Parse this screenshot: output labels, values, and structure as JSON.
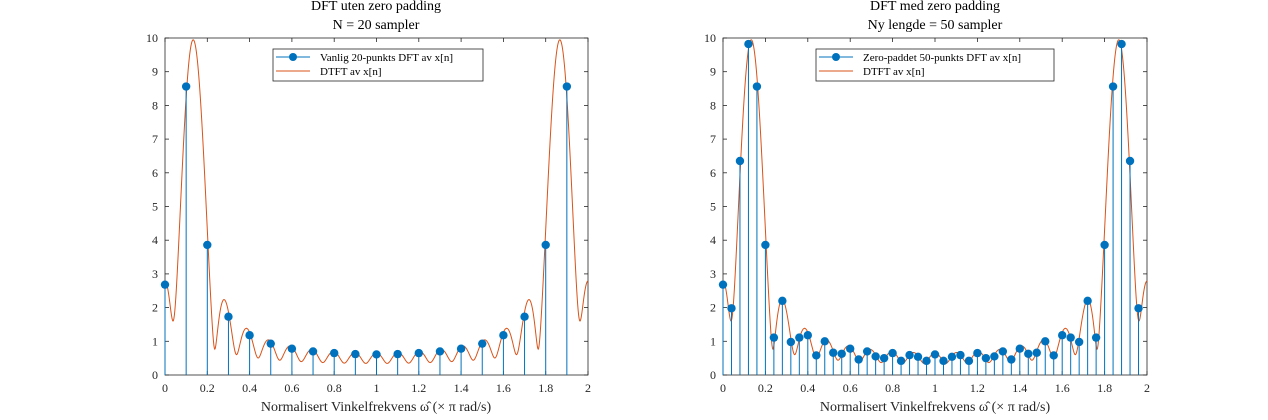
{
  "colors": {
    "stem": "#0072BD",
    "dtft": "#D95319",
    "axis": "#262626"
  },
  "chart_data": [
    {
      "type": "stem",
      "title": "DFT uten zero padding",
      "subtitle": "N = 20 sampler",
      "xlabel": "Normalisert Vinkelfrekvens ω̂ (× π rad/s)",
      "ylabel": "",
      "xlim": [
        0,
        2
      ],
      "ylim": [
        0,
        10
      ],
      "xticks": [
        0,
        0.2,
        0.4,
        0.6,
        0.8,
        1,
        1.2,
        1.4,
        1.6,
        1.8,
        2
      ],
      "yticks": [
        0,
        1,
        2,
        3,
        4,
        5,
        6,
        7,
        8,
        9,
        10
      ],
      "legend": {
        "position": "top-center",
        "entries": [
          "Vanlig 20-punkts DFT av x[n]",
          "DTFT av x[n]"
        ]
      },
      "series": [
        {
          "name": "Vanlig 20-punkts DFT av x[n]",
          "style": "stem",
          "x": [
            0,
            0.1,
            0.2,
            0.3,
            0.4,
            0.5,
            0.6,
            0.7,
            0.8,
            0.9,
            1.0,
            1.1,
            1.2,
            1.3,
            1.4,
            1.5,
            1.6,
            1.7,
            1.8,
            1.9
          ],
          "values": [
            2.68,
            8.56,
            3.86,
            1.73,
            1.18,
            0.93,
            0.78,
            0.7,
            0.65,
            0.62,
            0.61,
            0.62,
            0.65,
            0.7,
            0.78,
            0.93,
            1.18,
            1.73,
            3.86,
            8.56
          ]
        },
        {
          "name": "DTFT av x[n]",
          "style": "line",
          "N": 20,
          "omega0": 0.1333
        }
      ]
    },
    {
      "type": "stem",
      "title": "DFT med zero padding",
      "subtitle": "Ny lengde = 50 sampler",
      "xlabel": "Normalisert Vinkelfrekvens ω̂ (× π rad/s)",
      "ylabel": "",
      "xlim": [
        0,
        2
      ],
      "ylim": [
        0,
        10
      ],
      "xticks": [
        0,
        0.2,
        0.4,
        0.6,
        0.8,
        1,
        1.2,
        1.4,
        1.6,
        1.8,
        2
      ],
      "yticks": [
        0,
        1,
        2,
        3,
        4,
        5,
        6,
        7,
        8,
        9,
        10
      ],
      "legend": {
        "position": "top-center",
        "entries": [
          "Zero-paddet 50-punkts DFT av x[n]",
          "DTFT av x[n]"
        ]
      },
      "series": [
        {
          "name": "Zero-paddet 50-punkts DFT av x[n]",
          "style": "stem",
          "x": [
            0,
            0.04,
            0.08,
            0.12,
            0.16,
            0.2,
            0.24,
            0.28,
            0.32,
            0.36,
            0.4,
            0.44,
            0.48,
            0.52,
            0.56,
            0.6,
            0.64,
            0.68,
            0.72,
            0.76,
            0.8,
            0.84,
            0.88,
            0.92,
            0.96,
            1.0,
            1.04,
            1.08,
            1.12,
            1.16,
            1.2,
            1.24,
            1.28,
            1.32,
            1.36,
            1.4,
            1.44,
            1.48,
            1.52,
            1.56,
            1.6,
            1.64,
            1.68,
            1.72,
            1.76,
            1.8,
            1.84,
            1.88,
            1.92,
            1.96
          ],
          "values": [
            2.68,
            1.98,
            6.35,
            9.82,
            8.56,
            3.86,
            1.11,
            2.2,
            0.98,
            1.11,
            1.18,
            0.58,
            1.0,
            0.66,
            0.63,
            0.78,
            0.46,
            0.7,
            0.55,
            0.5,
            0.65,
            0.42,
            0.59,
            0.54,
            0.42,
            0.61,
            0.42,
            0.54,
            0.59,
            0.42,
            0.65,
            0.5,
            0.55,
            0.7,
            0.46,
            0.78,
            0.63,
            0.66,
            1.0,
            0.58,
            1.18,
            1.11,
            0.98,
            2.2,
            1.11,
            3.86,
            8.56,
            9.82,
            6.35,
            1.98
          ]
        },
        {
          "name": "DTFT av x[n]",
          "style": "line",
          "N": 20,
          "omega0": 0.1333
        }
      ]
    }
  ]
}
